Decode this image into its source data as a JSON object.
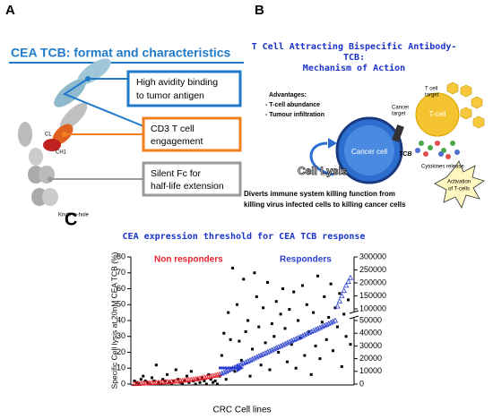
{
  "panel_a": {
    "label": "A",
    "title": "CEA TCB: format and characteristics",
    "box_1": [
      "High avidity binding",
      "to tumor antigen"
    ],
    "box_2": [
      "CD3 T cell",
      "engagement"
    ],
    "box_3": [
      "Silent Fc for",
      "half-life extension"
    ],
    "domain_cl": "CL",
    "domain_ch1": "CH1",
    "knob": "Knob-in-hole"
  },
  "panel_b": {
    "label": "B",
    "title": [
      "T Cell Attracting Bispecific Antibody-",
      "TCB:",
      "Mechanism of Action"
    ],
    "advantages": [
      "Advantages:",
      "- T-cell abundance",
      "- Tumour infiltration"
    ],
    "t_cell_target": [
      "T cell",
      "target"
    ],
    "cancer_target": [
      "Cancer",
      "target"
    ],
    "tcb": "TCB",
    "t_cell": "T-cell",
    "cancer_cell": "Cancer cell",
    "cell_lysis": "Cell Lysis",
    "cytokines": "Cytokines release",
    "activation": [
      "Activation",
      "of T-cells"
    ],
    "caption": [
      "Diverts immune system killing function  from",
      "killing virus infected cells to killing cancer cells"
    ]
  },
  "panel_c": {
    "label": "C"
  },
  "chart_data": {
    "type": "scatter",
    "title": "CEA expression threshold for CEA TCB response",
    "y_label": "Specific Cell lysis at 20nM CEA TCB (%)",
    "x_label": "CRC Cell lines",
    "ylim": [
      0,
      80
    ],
    "yticks": [
      0,
      10,
      20,
      30,
      40,
      50,
      60,
      70,
      80
    ],
    "y2lim": [
      0,
      300000
    ],
    "y2break": [
      50000,
      100000
    ],
    "y2ticks": [
      0,
      10000,
      20000,
      30000,
      40000,
      50000,
      100000,
      150000,
      200000,
      250000,
      300000
    ],
    "series": [
      {
        "color": "#000000",
        "marker": "square",
        "values": [
          2,
          1,
          0,
          3,
          5,
          2,
          1,
          0,
          4,
          2,
          12,
          1,
          0,
          3,
          2,
          6,
          1,
          0,
          2,
          9,
          3,
          1,
          0,
          2,
          5,
          1,
          8,
          2,
          0,
          3,
          1,
          4,
          2,
          0,
          6,
          3,
          1,
          2,
          0,
          5,
          18,
          32,
          3,
          45,
          28,
          73,
          8,
          50,
          27,
          15,
          66,
          33,
          40,
          5,
          22,
          70,
          55,
          36,
          12,
          48,
          26,
          64,
          9,
          38,
          30,
          52,
          20,
          44,
          60,
          35,
          14,
          47,
          25,
          58,
          10,
          40,
          29,
          62,
          18,
          50,
          33,
          6,
          45,
          24,
          68,
          16,
          39,
          55,
          28,
          42,
          63,
          21,
          48,
          36,
          57,
          11,
          44,
          30,
          53,
          25
        ]
      },
      {
        "name": "Non responders",
        "color": "#e8202a",
        "marker": "triangle",
        "axis": "y2",
        "values": [
          200,
          300,
          400,
          500,
          600,
          700,
          800,
          900,
          1000,
          1100,
          1200,
          1300,
          1400,
          1500,
          1600,
          1700,
          1800,
          1900,
          2000,
          2200,
          2400,
          2600,
          2800,
          3000,
          3200,
          3400,
          3600,
          3800,
          4000,
          4300,
          4600,
          4900,
          5200,
          5500,
          5800,
          6100,
          6500,
          6900,
          7300,
          7800,
          null,
          null,
          null,
          null,
          null,
          null,
          null,
          null,
          null,
          null,
          null,
          null,
          null,
          null,
          null,
          null,
          null,
          null,
          null,
          null,
          null,
          null,
          null,
          null,
          null,
          null,
          null,
          null,
          null,
          null,
          null,
          null,
          null,
          null,
          null,
          null,
          null,
          null,
          null,
          null,
          null,
          null,
          null,
          null,
          null,
          null,
          null,
          null,
          null,
          null,
          null,
          null,
          null,
          null,
          null,
          null,
          null,
          null,
          null,
          null
        ]
      },
      {
        "name": "Responders",
        "color": "#2a3fd0",
        "marker": "triangle",
        "axis": "y2",
        "values": [
          null,
          null,
          null,
          null,
          null,
          null,
          null,
          null,
          null,
          null,
          null,
          null,
          null,
          null,
          null,
          null,
          null,
          null,
          null,
          null,
          null,
          null,
          null,
          null,
          null,
          null,
          null,
          null,
          null,
          null,
          null,
          null,
          null,
          null,
          null,
          null,
          null,
          null,
          null,
          null,
          8500,
          9200,
          10000,
          10800,
          11600,
          12400,
          13200,
          14000,
          14800,
          15600,
          16400,
          17200,
          18000,
          18800,
          19600,
          20400,
          21200,
          22000,
          22800,
          23600,
          24400,
          25200,
          26000,
          26800,
          27600,
          28400,
          29200,
          30000,
          30800,
          31600,
          32400,
          33200,
          34000,
          34800,
          35600,
          36400,
          37200,
          38000,
          38800,
          39600,
          40400,
          41200,
          42000,
          42800,
          43600,
          44400,
          45200,
          46000,
          46800,
          47600,
          48400,
          49200,
          50000,
          110000,
          130000,
          150000,
          170000,
          190000,
          205000,
          220000
        ]
      }
    ]
  }
}
